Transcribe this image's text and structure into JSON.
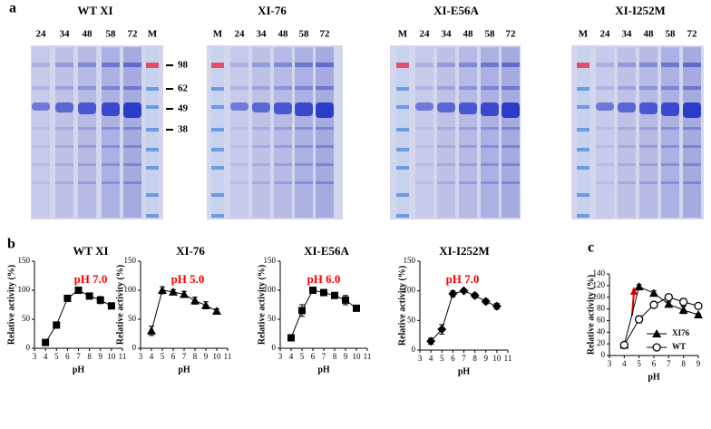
{
  "panel_labels": [
    "a",
    "b",
    "c"
  ],
  "gels": [
    {
      "title": "WT XI",
      "lanes": [
        "24",
        "34",
        "48",
        "58",
        "72",
        "M"
      ],
      "markers": [
        98,
        62,
        49,
        38
      ]
    },
    {
      "title": "XI-76",
      "lanes": [
        "M",
        "24",
        "34",
        "48",
        "58",
        "72"
      ]
    },
    {
      "title": "XI-E56A",
      "lanes": [
        "M",
        "24",
        "34",
        "48",
        "58",
        "72"
      ]
    },
    {
      "title": "XI-I252M",
      "lanes": [
        "M",
        "24",
        "34",
        "48",
        "58",
        "72"
      ]
    }
  ],
  "chart_data": [
    {
      "type": "line",
      "title": "WT XI",
      "annotation": "pH 7.0",
      "annotation_color": "#ff0000",
      "x_label": "pH",
      "y_label": "Relative activity (%)",
      "x": [
        4,
        5,
        6,
        7,
        8,
        9,
        10
      ],
      "series": [
        {
          "color": "#000000",
          "marker": "square",
          "values": [
            10,
            40,
            86,
            100,
            90,
            83,
            73
          ],
          "errors": [
            2,
            2,
            5,
            4,
            3,
            6,
            5
          ]
        }
      ],
      "xlim": [
        3,
        11
      ],
      "xticks": [
        3,
        4,
        5,
        6,
        7,
        8,
        9,
        10,
        11
      ],
      "ylim": [
        0,
        150
      ],
      "yticks": [
        0,
        50,
        100,
        150
      ]
    },
    {
      "type": "line",
      "title": "XI-76",
      "annotation": "pH 5.0",
      "annotation_color": "#ff0000",
      "x_label": "pH",
      "y_label": "Relative activity (%)",
      "x": [
        4,
        5,
        6,
        7,
        8,
        9,
        10
      ],
      "series": [
        {
          "color": "#000000",
          "marker": "triangle",
          "values": [
            30,
            100,
            97,
            93,
            82,
            74,
            64
          ],
          "errors": [
            8,
            6,
            4,
            5,
            6,
            6,
            4
          ]
        }
      ],
      "xlim": [
        3,
        11
      ],
      "xticks": [
        3,
        4,
        5,
        6,
        7,
        8,
        9,
        10,
        11
      ],
      "ylim": [
        0,
        150
      ],
      "yticks": [
        0,
        50,
        100,
        150
      ]
    },
    {
      "type": "line",
      "title": "XI-E56A",
      "annotation": "pH 6.0",
      "annotation_color": "#ff0000",
      "x_label": "pH",
      "y_label": "Relative activity (%)",
      "x": [
        4,
        5,
        6,
        7,
        8,
        9,
        10
      ],
      "series": [
        {
          "color": "#000000",
          "marker": "square",
          "values": [
            18,
            65,
            100,
            96,
            91,
            83,
            69
          ],
          "errors": [
            2,
            10,
            3,
            4,
            4,
            8,
            3
          ]
        }
      ],
      "xlim": [
        3,
        11
      ],
      "xticks": [
        3,
        4,
        5,
        6,
        7,
        8,
        9,
        10,
        11
      ],
      "ylim": [
        0,
        150
      ],
      "yticks": [
        0,
        50,
        100,
        150
      ]
    },
    {
      "type": "line",
      "title": "XI-I252M",
      "annotation": "pH 7.0",
      "annotation_color": "#ff0000",
      "x_label": "pH",
      "y_label": "Relative activity (%)",
      "x": [
        4,
        5,
        6,
        7,
        8,
        9,
        10
      ],
      "series": [
        {
          "color": "#000000",
          "marker": "diamond",
          "values": [
            15,
            35,
            95,
            100,
            92,
            82,
            74
          ],
          "errors": [
            5,
            8,
            5,
            3,
            4,
            4,
            5
          ]
        }
      ],
      "xlim": [
        3,
        11
      ],
      "xticks": [
        3,
        4,
        5,
        6,
        7,
        8,
        9,
        10,
        11
      ],
      "ylim": [
        0,
        150
      ],
      "yticks": [
        0,
        50,
        100,
        150
      ]
    },
    {
      "type": "line",
      "x_label": "pH",
      "y_label": "Relative activity (%)",
      "x": [
        4,
        5,
        6,
        7,
        8,
        9
      ],
      "series": [
        {
          "name": "XI76",
          "color": "#000000",
          "marker": "triangle",
          "values": [
            18,
            118,
            107,
            88,
            78,
            70
          ],
          "errors": [
            3,
            4,
            4,
            4,
            6,
            2
          ]
        },
        {
          "name": "WT",
          "color": "#000000",
          "marker": "circle",
          "values": [
            18,
            62,
            87,
            100,
            92,
            85
          ],
          "errors": [
            3,
            6,
            3,
            5,
            6,
            3
          ]
        }
      ],
      "xlim": [
        3,
        9
      ],
      "xticks": [
        3,
        4,
        5,
        6,
        7,
        8,
        9
      ],
      "ylim": [
        0,
        140
      ],
      "yticks": [
        0,
        20,
        40,
        60,
        80,
        100,
        120,
        140
      ]
    }
  ]
}
